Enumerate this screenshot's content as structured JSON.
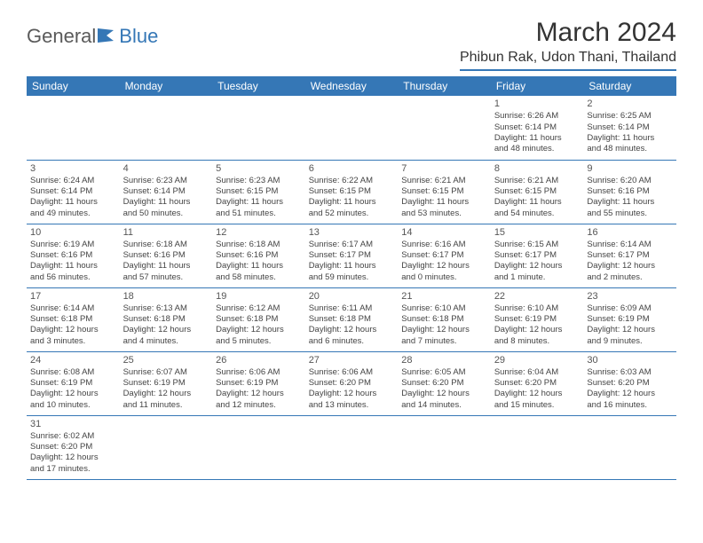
{
  "logo": {
    "text1": "General",
    "text2": "Blue"
  },
  "title": "March 2024",
  "location": "Phibun Rak, Udon Thani, Thailand",
  "colors": {
    "accent": "#3577b6",
    "text": "#444444",
    "header_bg": "#3577b6"
  },
  "day_headers": [
    "Sunday",
    "Monday",
    "Tuesday",
    "Wednesday",
    "Thursday",
    "Friday",
    "Saturday"
  ],
  "weeks": [
    [
      null,
      null,
      null,
      null,
      null,
      {
        "n": "1",
        "sr": "Sunrise: 6:26 AM",
        "ss": "Sunset: 6:14 PM",
        "d1": "Daylight: 11 hours",
        "d2": "and 48 minutes."
      },
      {
        "n": "2",
        "sr": "Sunrise: 6:25 AM",
        "ss": "Sunset: 6:14 PM",
        "d1": "Daylight: 11 hours",
        "d2": "and 48 minutes."
      }
    ],
    [
      {
        "n": "3",
        "sr": "Sunrise: 6:24 AM",
        "ss": "Sunset: 6:14 PM",
        "d1": "Daylight: 11 hours",
        "d2": "and 49 minutes."
      },
      {
        "n": "4",
        "sr": "Sunrise: 6:23 AM",
        "ss": "Sunset: 6:14 PM",
        "d1": "Daylight: 11 hours",
        "d2": "and 50 minutes."
      },
      {
        "n": "5",
        "sr": "Sunrise: 6:23 AM",
        "ss": "Sunset: 6:15 PM",
        "d1": "Daylight: 11 hours",
        "d2": "and 51 minutes."
      },
      {
        "n": "6",
        "sr": "Sunrise: 6:22 AM",
        "ss": "Sunset: 6:15 PM",
        "d1": "Daylight: 11 hours",
        "d2": "and 52 minutes."
      },
      {
        "n": "7",
        "sr": "Sunrise: 6:21 AM",
        "ss": "Sunset: 6:15 PM",
        "d1": "Daylight: 11 hours",
        "d2": "and 53 minutes."
      },
      {
        "n": "8",
        "sr": "Sunrise: 6:21 AM",
        "ss": "Sunset: 6:15 PM",
        "d1": "Daylight: 11 hours",
        "d2": "and 54 minutes."
      },
      {
        "n": "9",
        "sr": "Sunrise: 6:20 AM",
        "ss": "Sunset: 6:16 PM",
        "d1": "Daylight: 11 hours",
        "d2": "and 55 minutes."
      }
    ],
    [
      {
        "n": "10",
        "sr": "Sunrise: 6:19 AM",
        "ss": "Sunset: 6:16 PM",
        "d1": "Daylight: 11 hours",
        "d2": "and 56 minutes."
      },
      {
        "n": "11",
        "sr": "Sunrise: 6:18 AM",
        "ss": "Sunset: 6:16 PM",
        "d1": "Daylight: 11 hours",
        "d2": "and 57 minutes."
      },
      {
        "n": "12",
        "sr": "Sunrise: 6:18 AM",
        "ss": "Sunset: 6:16 PM",
        "d1": "Daylight: 11 hours",
        "d2": "and 58 minutes."
      },
      {
        "n": "13",
        "sr": "Sunrise: 6:17 AM",
        "ss": "Sunset: 6:17 PM",
        "d1": "Daylight: 11 hours",
        "d2": "and 59 minutes."
      },
      {
        "n": "14",
        "sr": "Sunrise: 6:16 AM",
        "ss": "Sunset: 6:17 PM",
        "d1": "Daylight: 12 hours",
        "d2": "and 0 minutes."
      },
      {
        "n": "15",
        "sr": "Sunrise: 6:15 AM",
        "ss": "Sunset: 6:17 PM",
        "d1": "Daylight: 12 hours",
        "d2": "and 1 minute."
      },
      {
        "n": "16",
        "sr": "Sunrise: 6:14 AM",
        "ss": "Sunset: 6:17 PM",
        "d1": "Daylight: 12 hours",
        "d2": "and 2 minutes."
      }
    ],
    [
      {
        "n": "17",
        "sr": "Sunrise: 6:14 AM",
        "ss": "Sunset: 6:18 PM",
        "d1": "Daylight: 12 hours",
        "d2": "and 3 minutes."
      },
      {
        "n": "18",
        "sr": "Sunrise: 6:13 AM",
        "ss": "Sunset: 6:18 PM",
        "d1": "Daylight: 12 hours",
        "d2": "and 4 minutes."
      },
      {
        "n": "19",
        "sr": "Sunrise: 6:12 AM",
        "ss": "Sunset: 6:18 PM",
        "d1": "Daylight: 12 hours",
        "d2": "and 5 minutes."
      },
      {
        "n": "20",
        "sr": "Sunrise: 6:11 AM",
        "ss": "Sunset: 6:18 PM",
        "d1": "Daylight: 12 hours",
        "d2": "and 6 minutes."
      },
      {
        "n": "21",
        "sr": "Sunrise: 6:10 AM",
        "ss": "Sunset: 6:18 PM",
        "d1": "Daylight: 12 hours",
        "d2": "and 7 minutes."
      },
      {
        "n": "22",
        "sr": "Sunrise: 6:10 AM",
        "ss": "Sunset: 6:19 PM",
        "d1": "Daylight: 12 hours",
        "d2": "and 8 minutes."
      },
      {
        "n": "23",
        "sr": "Sunrise: 6:09 AM",
        "ss": "Sunset: 6:19 PM",
        "d1": "Daylight: 12 hours",
        "d2": "and 9 minutes."
      }
    ],
    [
      {
        "n": "24",
        "sr": "Sunrise: 6:08 AM",
        "ss": "Sunset: 6:19 PM",
        "d1": "Daylight: 12 hours",
        "d2": "and 10 minutes."
      },
      {
        "n": "25",
        "sr": "Sunrise: 6:07 AM",
        "ss": "Sunset: 6:19 PM",
        "d1": "Daylight: 12 hours",
        "d2": "and 11 minutes."
      },
      {
        "n": "26",
        "sr": "Sunrise: 6:06 AM",
        "ss": "Sunset: 6:19 PM",
        "d1": "Daylight: 12 hours",
        "d2": "and 12 minutes."
      },
      {
        "n": "27",
        "sr": "Sunrise: 6:06 AM",
        "ss": "Sunset: 6:20 PM",
        "d1": "Daylight: 12 hours",
        "d2": "and 13 minutes."
      },
      {
        "n": "28",
        "sr": "Sunrise: 6:05 AM",
        "ss": "Sunset: 6:20 PM",
        "d1": "Daylight: 12 hours",
        "d2": "and 14 minutes."
      },
      {
        "n": "29",
        "sr": "Sunrise: 6:04 AM",
        "ss": "Sunset: 6:20 PM",
        "d1": "Daylight: 12 hours",
        "d2": "and 15 minutes."
      },
      {
        "n": "30",
        "sr": "Sunrise: 6:03 AM",
        "ss": "Sunset: 6:20 PM",
        "d1": "Daylight: 12 hours",
        "d2": "and 16 minutes."
      }
    ],
    [
      {
        "n": "31",
        "sr": "Sunrise: 6:02 AM",
        "ss": "Sunset: 6:20 PM",
        "d1": "Daylight: 12 hours",
        "d2": "and 17 minutes."
      },
      null,
      null,
      null,
      null,
      null,
      null
    ]
  ]
}
